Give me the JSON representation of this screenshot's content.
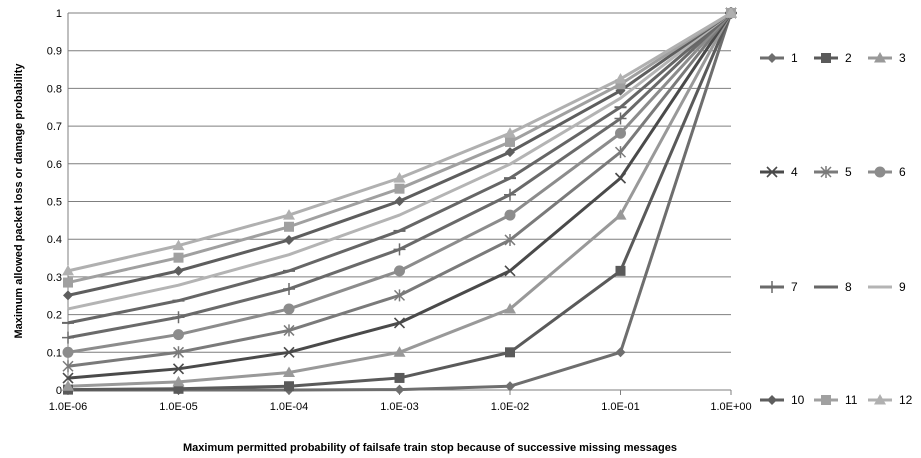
{
  "chart_data": {
    "type": "line",
    "title": "",
    "xlabel": "Maximum permitted probability of failsafe train stop because of successive missing messages",
    "ylabel": "Maximum allowed packet loss or damage probability",
    "x_scale": "log",
    "x": [
      1e-06,
      1e-05,
      0.0001,
      0.001,
      0.01,
      0.1,
      1
    ],
    "x_tick_labels": [
      "1.0E-06",
      "1.0E-05",
      "1.0E-04",
      "1.0E-03",
      "1.0E-02",
      "1.0E-01",
      "1.0E+00"
    ],
    "ylim": [
      0,
      1
    ],
    "y_ticks": [
      0,
      0.1,
      0.2,
      0.3,
      0.4,
      0.5,
      0.6,
      0.7,
      0.8,
      0.9,
      1
    ],
    "y_tick_labels": [
      "0",
      "0.1",
      "0.2",
      "0.3",
      "0.4",
      "0.5",
      "0.6",
      "0.7",
      "0.8",
      "0.9",
      "1"
    ],
    "grid": "horizontal",
    "legend_position": "right",
    "series": [
      {
        "name": "1",
        "marker": "diamond",
        "color": "#6e6e6e",
        "values": [
          1e-06,
          1e-05,
          0.0001,
          0.001,
          0.01,
          0.1,
          1
        ]
      },
      {
        "name": "2",
        "marker": "square",
        "color": "#5a5a5a",
        "values": [
          0.001,
          0.0032,
          0.01,
          0.032,
          0.1,
          0.316,
          1
        ]
      },
      {
        "name": "3",
        "marker": "triangle",
        "color": "#999999",
        "values": [
          0.01,
          0.0215,
          0.0464,
          0.1,
          0.215,
          0.464,
          1
        ]
      },
      {
        "name": "4",
        "marker": "x",
        "color": "#4a4a4a",
        "values": [
          0.0316,
          0.0562,
          0.1,
          0.178,
          0.316,
          0.562,
          1
        ]
      },
      {
        "name": "5",
        "marker": "star",
        "color": "#7a7a7a",
        "values": [
          0.063,
          0.1,
          0.158,
          0.251,
          0.398,
          0.631,
          1
        ]
      },
      {
        "name": "6",
        "marker": "circle",
        "color": "#8c8c8c",
        "values": [
          0.1,
          0.147,
          0.215,
          0.316,
          0.464,
          0.681,
          1
        ]
      },
      {
        "name": "7",
        "marker": "plus",
        "color": "#6a6a6a",
        "values": [
          0.139,
          0.193,
          0.268,
          0.373,
          0.518,
          0.72,
          1
        ]
      },
      {
        "name": "8",
        "marker": "dash",
        "color": "#666666",
        "values": [
          0.178,
          0.237,
          0.316,
          0.422,
          0.562,
          0.75,
          1
        ]
      },
      {
        "name": "9",
        "marker": "none",
        "color": "#b4b4b4",
        "values": [
          0.215,
          0.278,
          0.359,
          0.464,
          0.599,
          0.774,
          1
        ]
      },
      {
        "name": "10",
        "marker": "diamond",
        "color": "#5e5e5e",
        "values": [
          0.251,
          0.316,
          0.398,
          0.501,
          0.631,
          0.794,
          1
        ]
      },
      {
        "name": "11",
        "marker": "square",
        "color": "#a0a0a0",
        "values": [
          0.285,
          0.351,
          0.433,
          0.534,
          0.658,
          0.811,
          1
        ]
      },
      {
        "name": "12",
        "marker": "triangle",
        "color": "#b0b0b0",
        "values": [
          0.316,
          0.383,
          0.464,
          0.562,
          0.681,
          0.825,
          1
        ]
      }
    ]
  }
}
